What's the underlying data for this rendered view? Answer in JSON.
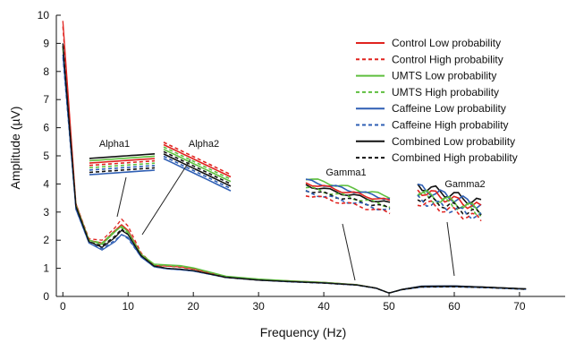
{
  "chart_data": {
    "type": "line",
    "title": "",
    "xlabel": "Frequency (Hz)",
    "ylabel": "Amplitude (µV)",
    "xlim": [
      -1,
      77
    ],
    "ylim": [
      0,
      10
    ],
    "xticks": [
      0,
      10,
      20,
      30,
      40,
      50,
      60,
      70
    ],
    "yticks": [
      0,
      1,
      2,
      3,
      4,
      5,
      6,
      7,
      8,
      9,
      10
    ],
    "grid": false,
    "legend": "top-right",
    "annotations": [
      "Alpha1",
      "Alpha2",
      "Gamma1",
      "Gamma2"
    ],
    "x": [
      0,
      2,
      4,
      6,
      8,
      9,
      10,
      12,
      14,
      16,
      18,
      20,
      25,
      30,
      35,
      40,
      45,
      48,
      50,
      52,
      55,
      60,
      65,
      71
    ],
    "series": [
      {
        "name": "Control Low probability",
        "color": "#e0231f",
        "style": "solid",
        "values": [
          9.8,
          3.3,
          2.0,
          1.9,
          2.35,
          2.55,
          2.35,
          1.5,
          1.1,
          1.08,
          1.05,
          0.98,
          0.7,
          0.6,
          0.55,
          0.5,
          0.42,
          0.3,
          0.12,
          0.25,
          0.36,
          0.37,
          0.33,
          0.27
        ]
      },
      {
        "name": "Control High probability",
        "color": "#e0231f",
        "style": "dashed",
        "values": [
          9.6,
          3.3,
          2.05,
          2.0,
          2.45,
          2.75,
          2.5,
          1.55,
          1.1,
          1.08,
          1.04,
          0.97,
          0.7,
          0.6,
          0.54,
          0.49,
          0.41,
          0.3,
          0.12,
          0.24,
          0.34,
          0.35,
          0.32,
          0.26
        ]
      },
      {
        "name": "UMTS Low probability",
        "color": "#5fbf3f",
        "style": "solid",
        "values": [
          8.9,
          3.25,
          2.0,
          1.85,
          2.3,
          2.5,
          2.3,
          1.5,
          1.15,
          1.12,
          1.1,
          1.02,
          0.72,
          0.62,
          0.55,
          0.5,
          0.42,
          0.3,
          0.12,
          0.25,
          0.36,
          0.37,
          0.33,
          0.27
        ]
      },
      {
        "name": "UMTS High probability",
        "color": "#5fbf3f",
        "style": "dashed",
        "values": [
          8.8,
          3.2,
          2.0,
          1.9,
          2.35,
          2.45,
          2.25,
          1.48,
          1.12,
          1.1,
          1.07,
          1.0,
          0.7,
          0.61,
          0.54,
          0.49,
          0.41,
          0.3,
          0.12,
          0.24,
          0.35,
          0.36,
          0.32,
          0.26
        ]
      },
      {
        "name": "Caffeine Low probability",
        "color": "#2f5fb4",
        "style": "solid",
        "values": [
          8.6,
          3.1,
          1.9,
          1.65,
          1.95,
          2.2,
          2.1,
          1.4,
          1.05,
          0.98,
          0.95,
          0.9,
          0.68,
          0.58,
          0.52,
          0.48,
          0.41,
          0.3,
          0.12,
          0.25,
          0.37,
          0.38,
          0.33,
          0.27
        ]
      },
      {
        "name": "Caffeine High probability",
        "color": "#2f5fb4",
        "style": "dashed",
        "values": [
          8.5,
          3.1,
          1.9,
          1.7,
          2.0,
          2.2,
          2.05,
          1.4,
          1.05,
          0.98,
          0.95,
          0.9,
          0.67,
          0.58,
          0.52,
          0.47,
          0.4,
          0.29,
          0.12,
          0.24,
          0.33,
          0.34,
          0.31,
          0.25
        ]
      },
      {
        "name": "Combined Low probability",
        "color": "#111111",
        "style": "solid",
        "values": [
          9.0,
          3.2,
          1.95,
          1.75,
          2.1,
          2.35,
          2.2,
          1.45,
          1.08,
          1.0,
          0.97,
          0.92,
          0.68,
          0.58,
          0.53,
          0.48,
          0.41,
          0.3,
          0.12,
          0.25,
          0.36,
          0.37,
          0.33,
          0.27
        ]
      },
      {
        "name": "Combined High probability",
        "color": "#111111",
        "style": "dashed",
        "values": [
          8.9,
          3.2,
          1.95,
          1.8,
          2.15,
          2.4,
          2.2,
          1.45,
          1.08,
          1.0,
          0.97,
          0.92,
          0.67,
          0.58,
          0.52,
          0.47,
          0.4,
          0.29,
          0.12,
          0.24,
          0.33,
          0.34,
          0.31,
          0.25
        ]
      }
    ]
  }
}
